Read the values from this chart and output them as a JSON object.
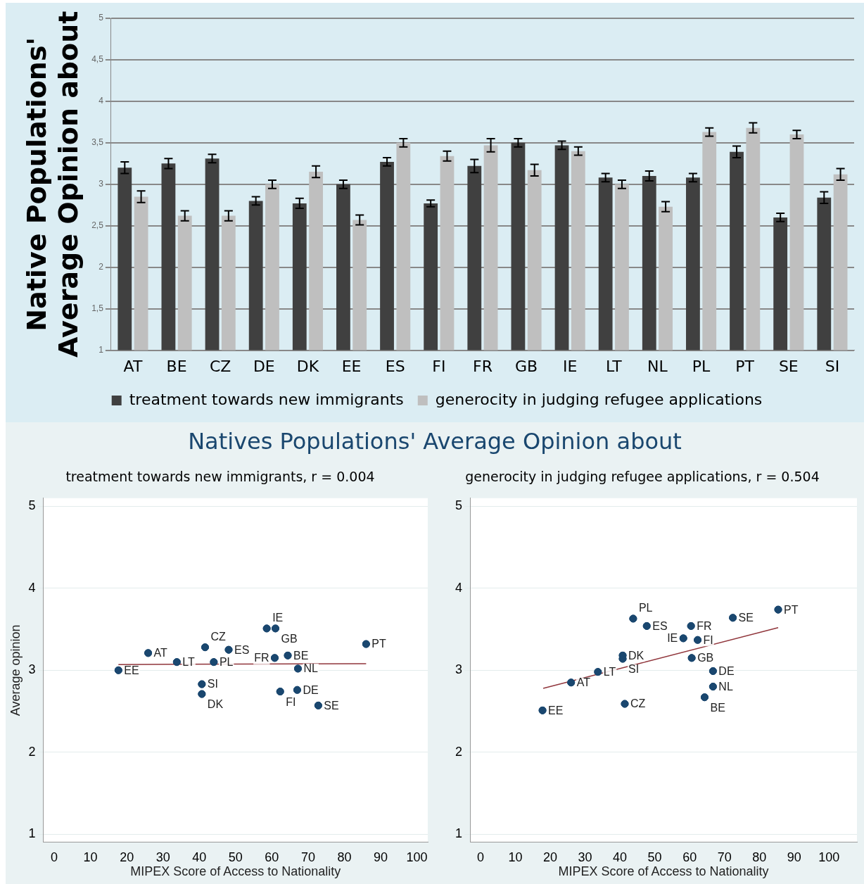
{
  "chart_data": [
    {
      "type": "bar",
      "ylabel": "Native Populations' Average Opinion about",
      "categories": [
        "AT",
        "BE",
        "CZ",
        "DE",
        "DK",
        "EE",
        "ES",
        "FI",
        "FR",
        "GB",
        "IE",
        "LT",
        "NL",
        "PL",
        "PT",
        "SE",
        "SI"
      ],
      "series": [
        {
          "name": "treatment towards new immigrants",
          "color": "#404040",
          "values": [
            3.2,
            3.25,
            3.31,
            2.8,
            2.77,
            3.0,
            3.27,
            2.77,
            3.22,
            3.5,
            3.47,
            3.08,
            3.1,
            3.08,
            3.39,
            2.6,
            2.84
          ],
          "errors": [
            0.07,
            0.06,
            0.05,
            0.05,
            0.06,
            0.05,
            0.05,
            0.04,
            0.08,
            0.05,
            0.05,
            0.05,
            0.06,
            0.05,
            0.07,
            0.05,
            0.07
          ]
        },
        {
          "name": "generocity in judging refugee applications",
          "color": "#bfbfbf",
          "values": [
            2.85,
            2.62,
            2.62,
            3.0,
            3.15,
            2.57,
            3.5,
            3.34,
            3.47,
            3.17,
            3.4,
            3.0,
            2.73,
            3.63,
            3.68,
            3.6,
            3.12
          ],
          "errors": [
            0.07,
            0.06,
            0.06,
            0.05,
            0.07,
            0.06,
            0.05,
            0.06,
            0.08,
            0.07,
            0.05,
            0.05,
            0.06,
            0.05,
            0.06,
            0.05,
            0.07
          ]
        }
      ],
      "ylim": [
        1,
        5
      ],
      "yticks": [
        1,
        {
          "value": 1.5,
          "label": "1,5"
        },
        2,
        {
          "value": 2.5,
          "label": "2,5"
        },
        3,
        {
          "value": 3.5,
          "label": "3,5"
        },
        4,
        {
          "value": 4.5,
          "label": "4,5"
        },
        5
      ],
      "grid": "y",
      "legend": "bottom"
    },
    {
      "type": "scatter",
      "title": "Natives Populations' Average Opinion about",
      "subtitle": "treatment towards new immigrants, r = 0.004",
      "xlabel": "MIPEX Score of Access to Nationality",
      "ylabel": "Average opinion",
      "marker": "circle",
      "grid": "y",
      "xlim": [
        -3,
        103
      ],
      "xticks": [
        0,
        10,
        20,
        30,
        40,
        50,
        60,
        70,
        80,
        90,
        100
      ],
      "ylim": [
        0.9,
        5.1
      ],
      "yticks": [
        1,
        2,
        3,
        4,
        5
      ],
      "series": [
        {
          "name": "EE",
          "color": "#1a476f",
          "x": [
            17.7
          ],
          "values": [
            3.0
          ]
        },
        {
          "name": "AT",
          "color": "#1a476f",
          "x": [
            25.9
          ],
          "values": [
            3.21
          ]
        },
        {
          "name": "LT",
          "color": "#1a476f",
          "x": [
            33.8
          ],
          "values": [
            3.1
          ]
        },
        {
          "name": "CZ",
          "color": "#1a476f",
          "x": [
            41.6
          ],
          "values": [
            3.28
          ]
        },
        {
          "name": "PL",
          "color": "#1a476f",
          "x": [
            44.0
          ],
          "values": [
            3.1
          ]
        },
        {
          "name": "ES",
          "color": "#1a476f",
          "x": [
            48.1
          ],
          "values": [
            3.25
          ]
        },
        {
          "name": "SI",
          "color": "#1a476f",
          "x": [
            40.7
          ],
          "values": [
            2.83
          ]
        },
        {
          "name": "DK",
          "color": "#1a476f",
          "x": [
            40.7
          ],
          "values": [
            2.71
          ]
        },
        {
          "name": "IE",
          "color": "#1a476f",
          "x": [
            58.6
          ],
          "values": [
            3.51
          ]
        },
        {
          "name": "GB",
          "color": "#1a476f",
          "x": [
            61.0
          ],
          "values": [
            3.51
          ]
        },
        {
          "name": "FR",
          "color": "#1a476f",
          "x": [
            60.8
          ],
          "values": [
            3.15
          ]
        },
        {
          "name": "BE",
          "color": "#1a476f",
          "x": [
            64.4
          ],
          "values": [
            3.18
          ]
        },
        {
          "name": "NL",
          "color": "#1a476f",
          "x": [
            67.2
          ],
          "values": [
            3.02
          ]
        },
        {
          "name": "FI",
          "color": "#1a476f",
          "x": [
            62.3
          ],
          "values": [
            2.74
          ]
        },
        {
          "name": "DE",
          "color": "#1a476f",
          "x": [
            67.0
          ],
          "values": [
            2.76
          ]
        },
        {
          "name": "SE",
          "color": "#1a476f",
          "x": [
            72.8
          ],
          "values": [
            2.57
          ]
        },
        {
          "name": "PT",
          "color": "#1a476f",
          "x": [
            86.0
          ],
          "values": [
            3.32
          ]
        },
        {
          "type": "line",
          "marker": "none",
          "color": "#90353b",
          "x": [
            17.7,
            86.0
          ],
          "values": [
            3.07,
            3.08
          ]
        }
      ]
    },
    {
      "type": "scatter",
      "subtitle": "generocity in judging refugee applications, r = 0.504",
      "xlabel": "MIPEX Score of Access to Nationality",
      "marker": "circle",
      "grid": "y",
      "xlim": [
        -3,
        108
      ],
      "xticks": [
        0,
        10,
        20,
        30,
        40,
        50,
        60,
        70,
        80,
        90,
        100
      ],
      "ylim": [
        0.9,
        5.1
      ],
      "yticks": [
        1,
        2,
        3,
        4,
        5
      ],
      "series": [
        {
          "name": "PL",
          "color": "#1a476f",
          "x": [
            43.8
          ],
          "values": [
            3.63
          ]
        },
        {
          "name": "ES",
          "color": "#1a476f",
          "x": [
            47.7
          ],
          "values": [
            3.54
          ]
        },
        {
          "name": "FR",
          "color": "#1a476f",
          "x": [
            60.4
          ],
          "values": [
            3.54
          ]
        },
        {
          "name": "SE",
          "color": "#1a476f",
          "x": [
            72.4
          ],
          "values": [
            3.64
          ]
        },
        {
          "name": "PT",
          "color": "#1a476f",
          "x": [
            85.4
          ],
          "values": [
            3.74
          ]
        },
        {
          "name": "IE",
          "color": "#1a476f",
          "x": [
            58.2
          ],
          "values": [
            3.39
          ]
        },
        {
          "name": "FI",
          "color": "#1a476f",
          "x": [
            62.3
          ],
          "values": [
            3.37
          ]
        },
        {
          "name": "DK",
          "color": "#1a476f",
          "x": [
            40.8
          ],
          "values": [
            3.18
          ]
        },
        {
          "name": "SI",
          "color": "#1a476f",
          "x": [
            40.8
          ],
          "values": [
            3.14
          ]
        },
        {
          "name": "GB",
          "color": "#1a476f",
          "x": [
            60.6
          ],
          "values": [
            3.15
          ]
        },
        {
          "name": "LT",
          "color": "#1a476f",
          "x": [
            33.7
          ],
          "values": [
            2.98
          ]
        },
        {
          "name": "AT",
          "color": "#1a476f",
          "x": [
            26.0
          ],
          "values": [
            2.85
          ]
        },
        {
          "name": "DE",
          "color": "#1a476f",
          "x": [
            66.7
          ],
          "values": [
            2.99
          ]
        },
        {
          "name": "NL",
          "color": "#1a476f",
          "x": [
            66.7
          ],
          "values": [
            2.8
          ]
        },
        {
          "name": "BE",
          "color": "#1a476f",
          "x": [
            64.3
          ],
          "values": [
            2.67
          ]
        },
        {
          "name": "CZ",
          "color": "#1a476f",
          "x": [
            41.4
          ],
          "values": [
            2.59
          ]
        },
        {
          "name": "EE",
          "color": "#1a476f",
          "x": [
            17.8
          ],
          "values": [
            2.51
          ]
        },
        {
          "type": "line",
          "marker": "none",
          "color": "#90353b",
          "x": [
            18,
            85.4
          ],
          "values": [
            2.78,
            3.52
          ]
        }
      ]
    }
  ]
}
